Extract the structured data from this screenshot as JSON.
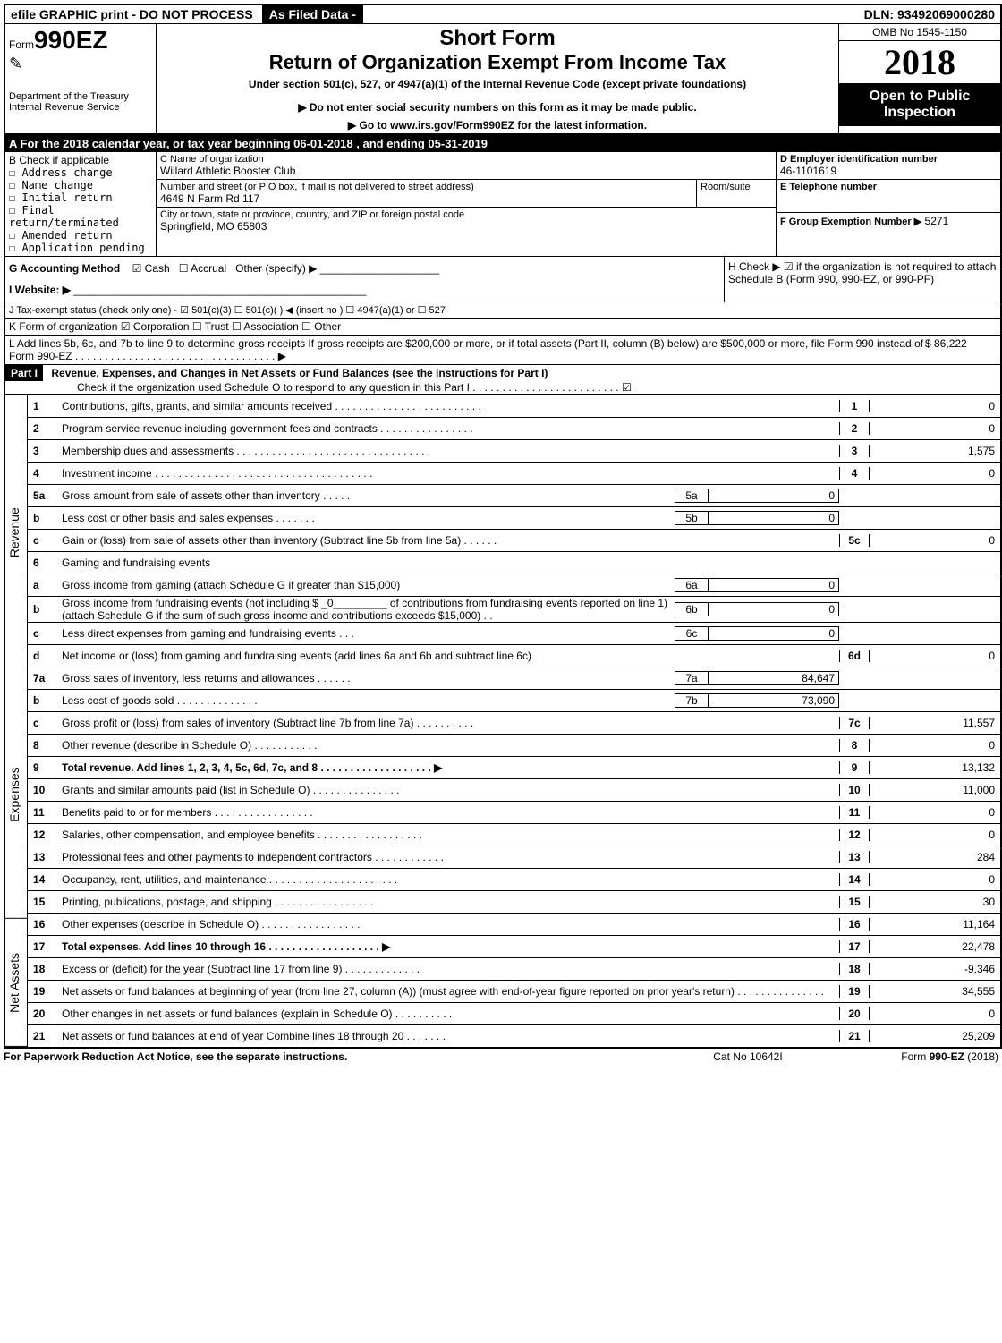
{
  "top": {
    "efile": "efile GRAPHIC print - DO NOT PROCESS",
    "asfiled": "As Filed Data -",
    "dln": "DLN: 93492069000280"
  },
  "header": {
    "form_label_small": "Form",
    "form_number": "990EZ",
    "short_form": "Short Form",
    "title": "Return of Organization Exempt From Income Tax",
    "subtitle": "Under section 501(c), 527, or 4947(a)(1) of the Internal Revenue Code (except private foundations)",
    "warn1": "▶ Do not enter social security numbers on this form as it may be made public.",
    "warn2": "▶ Go to www.irs.gov/Form990EZ for the latest information.",
    "dept": "Department of the Treasury",
    "irs": "Internal Revenue Service",
    "omb": "OMB No 1545-1150",
    "year": "2018",
    "open": "Open to Public Inspection"
  },
  "A": {
    "text_pre": "A  For the 2018 calendar year, or tax year beginning ",
    "begin": "06-01-2018",
    "mid": " , and ending ",
    "end": "05-31-2019"
  },
  "B": {
    "title": "B  Check if applicable",
    "items": [
      "Address change",
      "Name change",
      "Initial return",
      "Final return/terminated",
      "Amended return",
      "Application pending"
    ]
  },
  "C": {
    "name_label": "C Name of organization",
    "name": "Willard Athletic Booster Club",
    "addr_label": "Number and street (or P O box, if mail is not delivered to street address)",
    "room_label": "Room/suite",
    "addr": "4649 N Farm Rd 117",
    "city_label": "City or town, state or province, country, and ZIP or foreign postal code",
    "city": "Springfield, MO  65803"
  },
  "D": {
    "label": "D Employer identification number",
    "value": "46-1101619"
  },
  "E": {
    "label": "E Telephone number",
    "value": ""
  },
  "F": {
    "label": "F Group Exemption Number ▶",
    "value": "5271"
  },
  "G": {
    "label": "G Accounting Method",
    "cash": "☑ Cash",
    "accrual": "☐ Accrual",
    "other": "Other (specify) ▶"
  },
  "H": {
    "text": "H   Check ▶  ☑  if the organization is not required to attach Schedule B (Form 990, 990-EZ, or 990-PF)"
  },
  "I": {
    "label": "I Website: ▶"
  },
  "J": {
    "text": "J Tax-exempt status (check only one) - ☑ 501(c)(3) ☐ 501(c)(  ) ◀ (insert no ) ☐ 4947(a)(1) or ☐ 527"
  },
  "K": {
    "text": "K Form of organization    ☑ Corporation  ☐ Trust  ☐ Association  ☐ Other"
  },
  "L": {
    "text": "L Add lines 5b, 6c, and 7b to line 9 to determine gross receipts If gross receipts are $200,000 or more, or if total assets (Part II, column (B) below) are $500,000 or more, file Form 990 instead of Form 990-EZ . . . . . . . . . . . . . . . . . . . . . . . . . . . . . . . . . . ▶",
    "value": "$ 86,222"
  },
  "part1": {
    "label": "Part I",
    "title": "Revenue, Expenses, and Changes in Net Assets or Fund Balances (see the instructions for Part I)",
    "check": "Check if the organization used Schedule O to respond to any question in this Part I . . . . . . . . . . . . . . . . . . . . . . . . .  ☑"
  },
  "sections": {
    "revenue": "Revenue",
    "expenses": "Expenses",
    "netassets": "Net Assets"
  },
  "lines": {
    "l1": {
      "n": "1",
      "d": "Contributions, gifts, grants, and similar amounts received . . . . . . . . . . . . . . . . . . . . . . . . .",
      "rn": "1",
      "v": "0"
    },
    "l2": {
      "n": "2",
      "d": "Program service revenue including government fees and contracts . . . . . . . . . . . . . . . .",
      "rn": "2",
      "v": "0"
    },
    "l3": {
      "n": "3",
      "d": "Membership dues and assessments . . . . . . . . . . . . . . . . . . . . . . . . . . . . . . . . .",
      "rn": "3",
      "v": "1,575"
    },
    "l4": {
      "n": "4",
      "d": "Investment income . . . . . . . . . . . . . . . . . . . . . . . . . . . . . . . . . . . . .",
      "rn": "4",
      "v": "0"
    },
    "l5a": {
      "n": "5a",
      "d": "Gross amount from sale of assets other than inventory . . . . .",
      "sl": "5a",
      "sv": "0"
    },
    "l5b": {
      "n": "b",
      "d": "Less cost or other basis and sales expenses . . . . . . .",
      "sl": "5b",
      "sv": "0"
    },
    "l5c": {
      "n": "c",
      "d": "Gain or (loss) from sale of assets other than inventory (Subtract line 5b from line 5a) . . . . . .",
      "rn": "5c",
      "v": "0"
    },
    "l6": {
      "n": "6",
      "d": "Gaming and fundraising events"
    },
    "l6a": {
      "n": "a",
      "d": "Gross income from gaming (attach Schedule G if greater than $15,000)",
      "sl": "6a",
      "sv": "0"
    },
    "l6b": {
      "n": "b",
      "d": "Gross income from fundraising events (not including $ _0_________ of contributions from fundraising events reported on line 1) (attach Schedule G if the sum of such gross income and contributions exceeds $15,000)   . .",
      "sl": "6b",
      "sv": "0"
    },
    "l6c": {
      "n": "c",
      "d": "Less direct expenses from gaming and fundraising events    . . .",
      "sl": "6c",
      "sv": "0"
    },
    "l6d": {
      "n": "d",
      "d": "Net income or (loss) from gaming and fundraising events (add lines 6a and 6b and subtract line 6c)",
      "rn": "6d",
      "v": "0"
    },
    "l7a": {
      "n": "7a",
      "d": "Gross sales of inventory, less returns and allowances . . . . . .",
      "sl": "7a",
      "sv": "84,647"
    },
    "l7b": {
      "n": "b",
      "d": "Less cost of goods sold            . . . . . . . . . . . . . .",
      "sl": "7b",
      "sv": "73,090"
    },
    "l7c": {
      "n": "c",
      "d": "Gross profit or (loss) from sales of inventory (Subtract line 7b from line 7a) . . . . . . . . . .",
      "rn": "7c",
      "v": "11,557"
    },
    "l8": {
      "n": "8",
      "d": "Other revenue (describe in Schedule O)                          . . . . . . . . . . .",
      "rn": "8",
      "v": "0"
    },
    "l9": {
      "n": "9",
      "d": "Total revenue. Add lines 1, 2, 3, 4, 5c, 6d, 7c, and 8 . . . . . . . . . . . . . . . . . . .  ▶",
      "rn": "9",
      "v": "13,132",
      "bold": true
    },
    "l10": {
      "n": "10",
      "d": "Grants and similar amounts paid (list in Schedule O)           . . . . . . . . . . . . . . .",
      "rn": "10",
      "v": "11,000"
    },
    "l11": {
      "n": "11",
      "d": "Benefits paid to or for members                        . . . . . . . . . . . . . . . . .",
      "rn": "11",
      "v": "0"
    },
    "l12": {
      "n": "12",
      "d": "Salaries, other compensation, and employee benefits . . . . . . . . . . . . . . . . . .",
      "rn": "12",
      "v": "0"
    },
    "l13": {
      "n": "13",
      "d": "Professional fees and other payments to independent contractors . . . . . . . . . . . .",
      "rn": "13",
      "v": "284"
    },
    "l14": {
      "n": "14",
      "d": "Occupancy, rent, utilities, and maintenance . . . . . . . . . . . . . . . . . . . . . .",
      "rn": "14",
      "v": "0"
    },
    "l15": {
      "n": "15",
      "d": "Printing, publications, postage, and shipping           . . . . . . . . . . . . . . . . .",
      "rn": "15",
      "v": "30"
    },
    "l16": {
      "n": "16",
      "d": "Other expenses (describe in Schedule O)               . . . . . . . . . . . . . . . . .",
      "rn": "16",
      "v": "11,164"
    },
    "l17": {
      "n": "17",
      "d": "Total expenses. Add lines 10 through 16         . . . . . . . . . . . . . . . . . . .  ▶",
      "rn": "17",
      "v": "22,478",
      "bold": true
    },
    "l18": {
      "n": "18",
      "d": "Excess or (deficit) for the year (Subtract line 17 from line 9)     . . . . . . . . . . . . .",
      "rn": "18",
      "v": "-9,346"
    },
    "l19": {
      "n": "19",
      "d": "Net assets or fund balances at beginning of year (from line 27, column (A)) (must agree with end-of-year figure reported on prior year's return)            . . . . . . . . . . . . . . .",
      "rn": "19",
      "v": "34,555"
    },
    "l20": {
      "n": "20",
      "d": "Other changes in net assets or fund balances (explain in Schedule O)    . . . . . . . . . .",
      "rn": "20",
      "v": "0"
    },
    "l21": {
      "n": "21",
      "d": "Net assets or fund balances at end of year Combine lines 18 through 20      . . . . . . .",
      "rn": "21",
      "v": "25,209"
    }
  },
  "footer": {
    "left": "For Paperwork Reduction Act Notice, see the separate instructions.",
    "mid": "Cat No 10642I",
    "right": "Form 990-EZ (2018)"
  }
}
